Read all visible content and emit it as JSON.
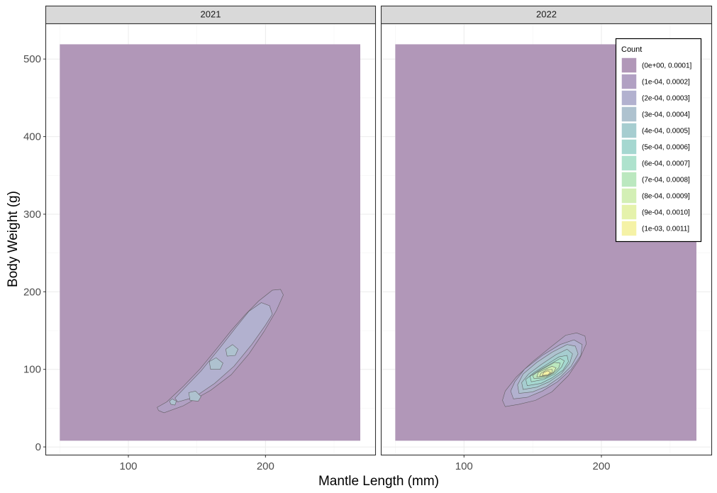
{
  "chart_data": {
    "type": "density-contour",
    "xlabel": "Mantle Length (mm)",
    "ylabel": "Body Weight (g)",
    "xlim": [
      40,
      280
    ],
    "ylim": [
      -10,
      545
    ],
    "x_ticks": [
      100,
      200
    ],
    "x_minor": [
      50,
      150,
      250
    ],
    "y_ticks": [
      0,
      100,
      200,
      300,
      400,
      500
    ],
    "y_minor": [
      50,
      150,
      250,
      350,
      450
    ],
    "fill_range": {
      "x": [
        50,
        285
      ],
      "y": [
        8,
        519
      ]
    },
    "legend": {
      "title": "Count",
      "position": "top-right",
      "labels": [
        "(0e+00, 0.0001]",
        "(1e-04, 0.0002]",
        "(2e-04, 0.0003]",
        "(3e-04, 0.0004]",
        "(4e-04, 0.0005]",
        "(5e-04, 0.0006]",
        "(6e-04, 0.0007]",
        "(7e-04, 0.0008]",
        "(8e-04, 0.0009]",
        "(9e-04, 0.0010]",
        "(1e-03, 0.0011]"
      ],
      "colors": [
        "#b197b8",
        "#b1a0c3",
        "#b2b1cf",
        "#aec2cf",
        "#a6cdd0",
        "#a5d7d0",
        "#aee2cd",
        "#bbe8bf",
        "#d3efb5",
        "#e5f2ab",
        "#f5f2a6"
      ]
    },
    "panels": [
      {
        "label": "2021",
        "levels": [
          {
            "level": 1,
            "polygons": [
              [
                [
                  122,
                  47
                ],
                [
                  126,
                  44
                ],
                [
                  140,
                  53
                ],
                [
                  160,
                  73
                ],
                [
                  175,
                  93
                ],
                [
                  188,
                  120
                ],
                [
                  199,
                  149
                ],
                [
                  208,
                  176
                ],
                [
                  213,
                  196
                ],
                [
                  211,
                  203
                ],
                [
                  205,
                  202
                ],
                [
                  195,
                  188
                ],
                [
                  185,
                  170
                ],
                [
                  175,
                  150
                ],
                [
                  165,
                  128
                ],
                [
                  152,
                  100
                ],
                [
                  140,
                  78
                ],
                [
                  128,
                  58
                ],
                [
                  121,
                  51
                ]
              ]
            ]
          },
          {
            "level": 2,
            "polygons": [
              [
                [
                  136,
                  58
                ],
                [
                  148,
                  64
                ],
                [
                  163,
                  82
                ],
                [
                  177,
                  104
                ],
                [
                  190,
                  132
                ],
                [
                  200,
                  157
                ],
                [
                  205,
                  171
                ],
                [
                  203,
                  182
                ],
                [
                  197,
                  186
                ],
                [
                  188,
                  175
                ],
                [
                  178,
                  153
                ],
                [
                  166,
                  126
                ],
                [
                  153,
                  98
                ],
                [
                  141,
                  76
                ],
                [
                  134,
                  63
                ]
              ]
            ]
          },
          {
            "level": 3,
            "polygons": [
              [
                [
                  145,
                  60
                ],
                [
                  151,
                  59
                ],
                [
                  153,
                  65
                ],
                [
                  149,
                  72
                ],
                [
                  144,
                  70
                ]
              ],
              [
                [
                  160,
                  100
                ],
                [
                  167,
                  100
                ],
                [
                  169,
                  108
                ],
                [
                  164,
                  115
                ],
                [
                  159,
                  110
                ]
              ],
              [
                [
                  172,
                  117
                ],
                [
                  178,
                  118
                ],
                [
                  180,
                  126
                ],
                [
                  176,
                  132
                ],
                [
                  171,
                  126
                ]
              ],
              [
                [
                  131,
                  55
                ],
                [
                  134,
                  54
                ],
                [
                  135,
                  59
                ],
                [
                  132,
                  62
                ],
                [
                  130,
                  59
                ]
              ]
            ]
          }
        ]
      },
      {
        "label": "2022",
        "levels": [
          {
            "level": 1,
            "polygons": [
              [
                [
                  130,
                  52
                ],
                [
                  140,
                  55
                ],
                [
                  152,
                  60
                ],
                [
                  164,
                  71
                ],
                [
                  176,
                  92
                ],
                [
                  184,
                  113
                ],
                [
                  189,
                  133
                ],
                [
                  188,
                  143
                ],
                [
                  182,
                  147
                ],
                [
                  174,
                  144
                ],
                [
                  164,
                  130
                ],
                [
                  150,
                  110
                ],
                [
                  138,
                  90
                ],
                [
                  130,
                  72
                ],
                [
                  128,
                  60
                ]
              ]
            ]
          },
          {
            "level": 2,
            "polygons": [
              [
                [
                  136,
                  62
                ],
                [
                  146,
                  64
                ],
                [
                  157,
                  72
                ],
                [
                  168,
                  84
                ],
                [
                  178,
                  100
                ],
                [
                  185,
                  118
                ],
                [
                  186,
                  132
                ],
                [
                  180,
                  138
                ],
                [
                  170,
                  132
                ],
                [
                  157,
                  118
                ],
                [
                  144,
                  100
                ],
                [
                  137,
                  84
                ],
                [
                  134,
                  72
                ]
              ]
            ]
          },
          {
            "level": 3,
            "polygons": [
              [
                [
                  140,
                  69
                ],
                [
                  150,
                  71
                ],
                [
                  160,
                  78
                ],
                [
                  170,
                  90
                ],
                [
                  178,
                  104
                ],
                [
                  183,
                  120
                ],
                [
                  181,
                  130
                ],
                [
                  175,
                  132
                ],
                [
                  164,
                  122
                ],
                [
                  153,
                  109
                ],
                [
                  143,
                  94
                ],
                [
                  139,
                  80
                ]
              ]
            ]
          },
          {
            "level": 4,
            "polygons": [
              [
                [
                  143,
                  74
                ],
                [
                  153,
                  77
                ],
                [
                  162,
                  84
                ],
                [
                  171,
                  95
                ],
                [
                  177,
                  108
                ],
                [
                  179,
                  120
                ],
                [
                  175,
                  126
                ],
                [
                  167,
                  119
                ],
                [
                  156,
                  106
                ],
                [
                  147,
                  94
                ],
                [
                  142,
                  83
                ]
              ]
            ]
          },
          {
            "level": 5,
            "polygons": [
              [
                [
                  146,
                  79
                ],
                [
                  156,
                  82
                ],
                [
                  164,
                  89
                ],
                [
                  172,
                  99
                ],
                [
                  176,
                  110
                ],
                [
                  175,
                  118
                ],
                [
                  169,
                  116
                ],
                [
                  160,
                  106
                ],
                [
                  151,
                  96
                ],
                [
                  145,
                  87
                ]
              ]
            ]
          },
          {
            "level": 6,
            "polygons": [
              [
                [
                  149,
                  84
                ],
                [
                  158,
                  87
                ],
                [
                  166,
                  94
                ],
                [
                  171,
                  103
                ],
                [
                  173,
                  111
                ],
                [
                  170,
                  114
                ],
                [
                  163,
                  107
                ],
                [
                  155,
                  99
                ],
                [
                  148,
                  91
                ]
              ]
            ]
          },
          {
            "level": 7,
            "polygons": [
              [
                [
                  151,
                  88
                ],
                [
                  159,
                  89
                ],
                [
                  165,
                  95
                ],
                [
                  169,
                  102
                ],
                [
                  170,
                  108
                ],
                [
                  166,
                  109
                ],
                [
                  160,
                  103
                ],
                [
                  153,
                  96
                ],
                [
                  150,
                  92
                ]
              ]
            ]
          },
          {
            "level": 8,
            "polygons": [
              [
                [
                  153,
                  90
                ],
                [
                  160,
                  91
                ],
                [
                  165,
                  96
                ],
                [
                  167,
                  102
                ],
                [
                  164,
                  104
                ],
                [
                  159,
                  100
                ],
                [
                  154,
                  96
                ]
              ]
            ]
          },
          {
            "level": 9,
            "polygons": [
              [
                [
                  155,
                  91
                ],
                [
                  161,
                  92
                ],
                [
                  164,
                  96
                ],
                [
                  164,
                  100
                ],
                [
                  160,
                  99
                ],
                [
                  156,
                  95
                ]
              ]
            ]
          },
          {
            "level": 10,
            "polygons": [
              [
                [
                  157,
                  92
                ],
                [
                  161,
                  93
                ],
                [
                  163,
                  96
                ],
                [
                  161,
                  98
                ],
                [
                  158,
                  96
                ]
              ]
            ]
          }
        ]
      }
    ]
  }
}
